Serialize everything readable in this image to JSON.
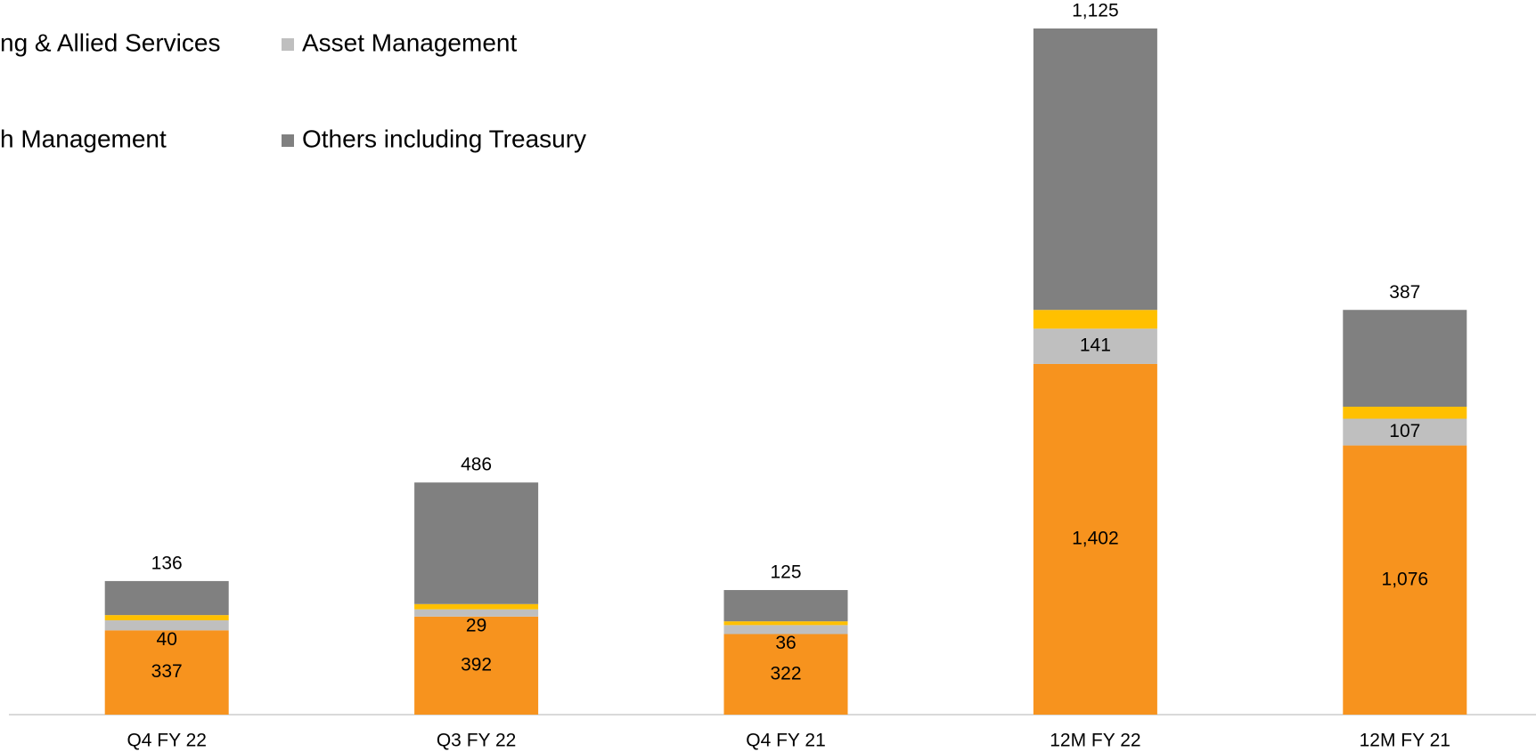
{
  "chart_data": {
    "type": "stacked_bar",
    "categories": [
      "Q4 FY 22",
      "Q3 FY 22",
      "Q4 FY 21",
      "12M FY 22",
      "12M FY 21"
    ],
    "series": [
      {
        "name": "ng & Allied Services",
        "color": "#F7931E",
        "values": [
          337,
          392,
          322,
          1402,
          1076
        ],
        "value_labels": [
          "337",
          "392",
          "322",
          "1,402",
          "1,076"
        ]
      },
      {
        "name": "Asset Management",
        "color": "#BFBFBF",
        "values": [
          40,
          29,
          36,
          141,
          107
        ]
      },
      {
        "name": "h Management",
        "color": "#FFC000",
        "values": [
          21,
          21,
          15,
          75,
          48
        ]
      },
      {
        "name": "Others including Treasury",
        "color": "#808080",
        "values": [
          136,
          486,
          125,
          1125,
          387
        ],
        "value_labels": [
          "136",
          "486",
          "125",
          "1,125",
          "387"
        ]
      }
    ],
    "ylim": [
      0,
      2800
    ]
  }
}
